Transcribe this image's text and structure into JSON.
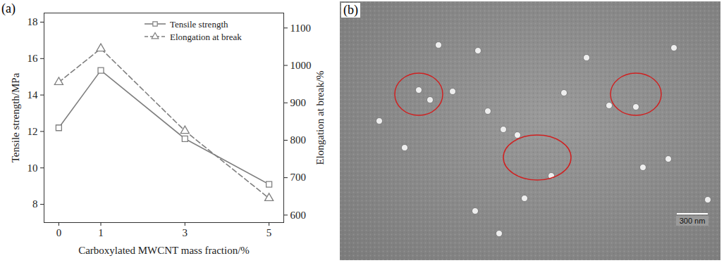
{
  "chart_data": {
    "type": "line",
    "panel": "(a)",
    "xlabel": "Carboxylated MWCNT mass fraction/%",
    "ylabel": "Tensile strength/MPa",
    "y2label": "Elongation at break/%",
    "x": [
      0,
      1,
      3,
      5
    ],
    "xlim": [
      -0.35,
      5.35
    ],
    "xticks": [
      0,
      1,
      3,
      5
    ],
    "ylim": [
      7,
      18.5
    ],
    "yticks": [
      8,
      10,
      12,
      14,
      16,
      18
    ],
    "y2lim": [
      580,
      1140
    ],
    "y2ticks": [
      600,
      700,
      800,
      900,
      1000,
      1100
    ],
    "legend": "top-right",
    "series": [
      {
        "name": "Tensile strength",
        "color": "#7f7f7f",
        "marker": "square",
        "line_style": "solid",
        "values": [
          12.2,
          15.35,
          11.6,
          9.1
        ]
      },
      {
        "name": "Elongation at break",
        "color": "#7f7f7f",
        "marker": "triangle",
        "line_style": "dashed",
        "axis": "y2",
        "values": [
          955,
          1045,
          825,
          645
        ]
      }
    ]
  },
  "image": {
    "panel": "(b)",
    "scale_bar": "300 nm"
  }
}
